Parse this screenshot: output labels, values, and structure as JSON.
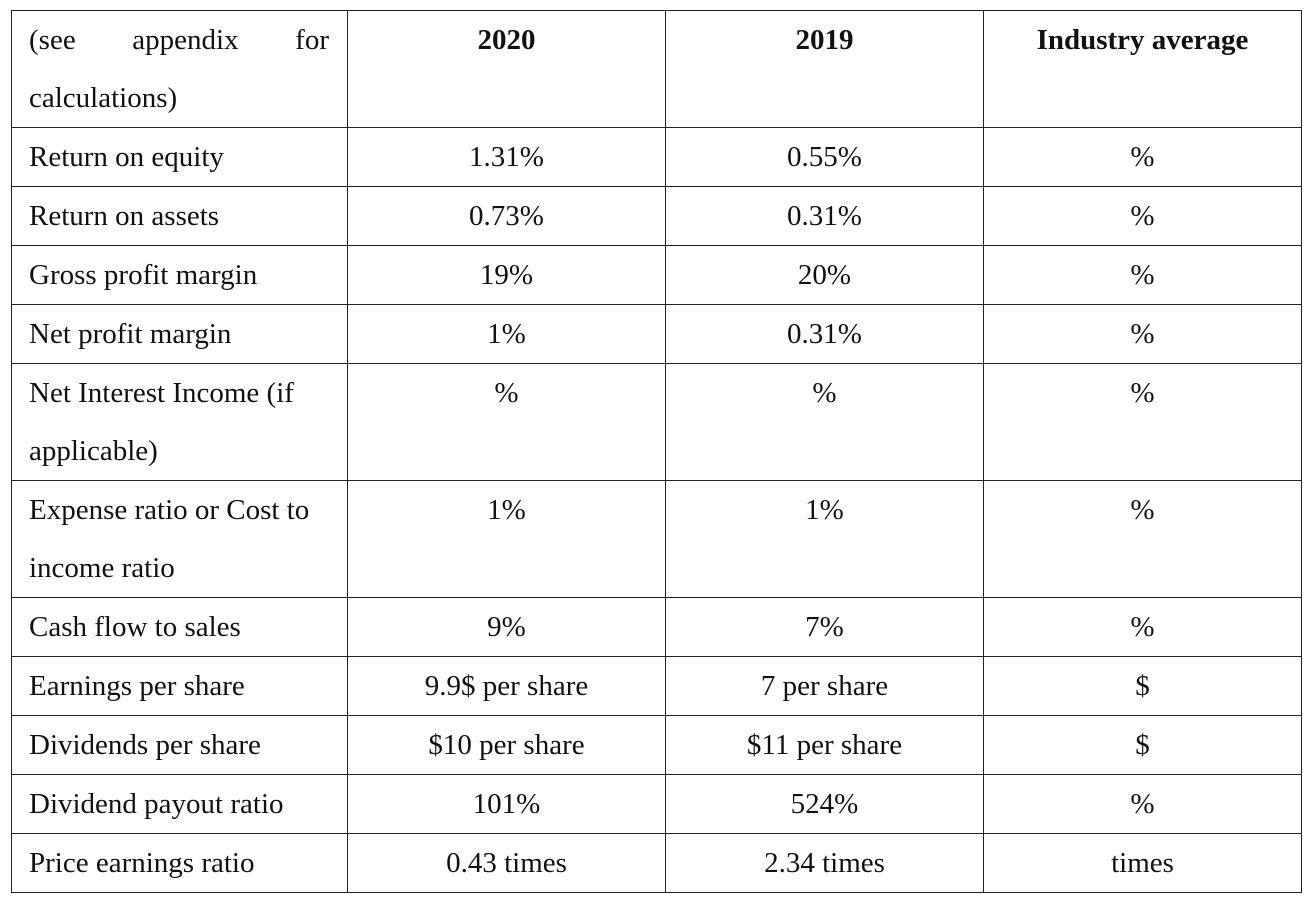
{
  "header": {
    "label": "(see appendix for calculations)",
    "col_2020": "2020",
    "col_2019": "2019",
    "col_industry": "Industry average"
  },
  "rows": [
    {
      "metric": "Return on equity",
      "v2020": "1.31%",
      "v2019": "0.55%",
      "industry": "%"
    },
    {
      "metric": "Return on assets",
      "v2020": "0.73%",
      "v2019": "0.31%",
      "industry": "%"
    },
    {
      "metric": "Gross profit margin",
      "v2020": "19%",
      "v2019": "20%",
      "industry": "%"
    },
    {
      "metric": "Net profit margin",
      "v2020": "1%",
      "v2019": "0.31%",
      "industry": "%"
    },
    {
      "metric": "Net Interest Income (if applicable)",
      "v2020": "%",
      "v2019": "%",
      "industry": "%"
    },
    {
      "metric": "Expense ratio or Cost to income ratio",
      "v2020": "1%",
      "v2019": "1%",
      "industry": "%"
    },
    {
      "metric": "Cash flow to sales",
      "v2020": "9%",
      "v2019": "7%",
      "industry": "%"
    },
    {
      "metric": "Earnings per share",
      "v2020": "9.9$ per share",
      "v2019": "7 per share",
      "industry": "$"
    },
    {
      "metric": "Dividends per share",
      "v2020": "$10 per share",
      "v2019": "$11 per share",
      "industry": "$"
    },
    {
      "metric": "Dividend payout ratio",
      "v2020": "101%",
      "v2019": "524%",
      "industry": "%"
    },
    {
      "metric": "Price earnings ratio",
      "v2020": "0.43 times",
      "v2019": "2.34 times",
      "industry": "times"
    }
  ]
}
